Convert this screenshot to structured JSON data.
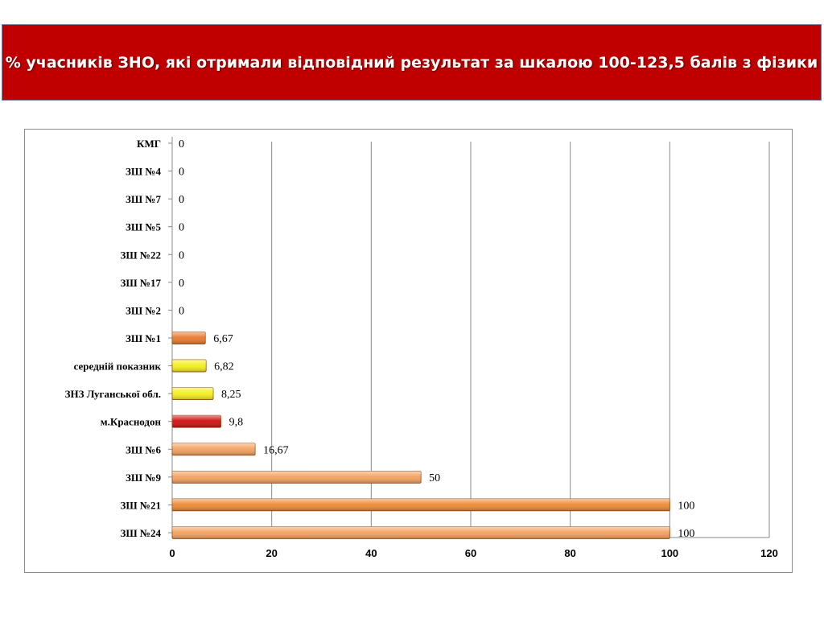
{
  "header": {
    "title": "% учасників ЗНО, які отримали відповідний результат за шкалою 100-123,5 балів з фізики"
  },
  "chart_data": {
    "type": "bar",
    "orientation": "horizontal",
    "title": "",
    "xlabel": "",
    "ylabel": "",
    "xlim": [
      0,
      120
    ],
    "x_ticks": [
      "0",
      "20",
      "40",
      "60",
      "80",
      "100",
      "120"
    ],
    "grid": "vertical",
    "categories": [
      "КМГ",
      "ЗШ №4",
      "ЗШ №7",
      "ЗШ №5",
      "ЗШ №22",
      "ЗШ №17",
      "ЗШ №2",
      "ЗШ №1",
      "середній показник",
      "ЗНЗ Луганської обл.",
      "м.Краснодон",
      "ЗШ №6",
      "ЗШ №9",
      "ЗШ №21",
      "ЗШ №24"
    ],
    "values": [
      0,
      0,
      0,
      0,
      0,
      0,
      0,
      6.67,
      6.82,
      8.25,
      9.8,
      16.67,
      50,
      100,
      100
    ],
    "value_labels": [
      "0",
      "0",
      "0",
      "0",
      "0",
      "0",
      "0",
      "6,67",
      "6,82",
      "8,25",
      "9,8",
      "16,67",
      "50",
      "100",
      "100"
    ],
    "bar_colors": [
      "#f0a060",
      "#f0a060",
      "#f0a060",
      "#f0a060",
      "#f0a060",
      "#f0a060",
      "#f0a060",
      "#e87a30",
      "#f5ef1c",
      "#f5ef1c",
      "#d01010",
      "#f4a260",
      "#f4a260",
      "#ed8a35",
      "#f4a260"
    ]
  }
}
